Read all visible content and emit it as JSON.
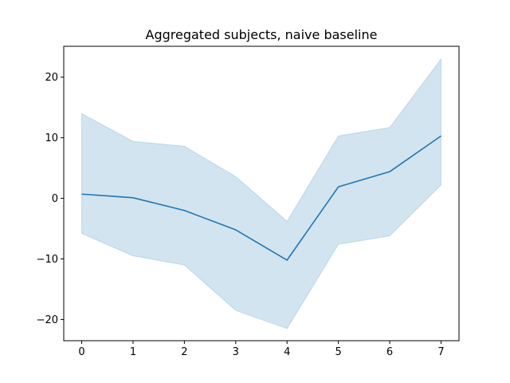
{
  "chart_data": {
    "type": "line",
    "title": "Aggregated subjects, naive baseline",
    "xlabel": "",
    "ylabel": "",
    "x": [
      0,
      1,
      2,
      3,
      4,
      5,
      6,
      7
    ],
    "series": [
      {
        "values": [
          0.7,
          0.1,
          -2.0,
          -5.2,
          -10.2,
          1.9,
          4.4,
          10.3
        ],
        "lower": [
          -5.8,
          -9.5,
          -11.0,
          -18.5,
          -21.5,
          -7.6,
          -6.2,
          2.2
        ],
        "upper": [
          14.0,
          9.4,
          8.6,
          3.6,
          -3.8,
          10.3,
          11.7,
          23.0
        ],
        "color": "#1f77b4",
        "band_color": "#1f77b4"
      }
    ],
    "xlim": [
      -0.35,
      7.35
    ],
    "ylim": [
      -23.5,
      25.1
    ],
    "xticks": [
      0,
      1,
      2,
      3,
      4,
      5,
      6,
      7
    ],
    "yticks": [
      -20,
      -10,
      0,
      10,
      20
    ],
    "xtick_labels": [
      "0",
      "1",
      "2",
      "3",
      "4",
      "5",
      "6",
      "7"
    ],
    "ytick_labels": [
      "−20",
      "−10",
      "0",
      "10",
      "20"
    ],
    "grid": false,
    "legend": "none"
  }
}
